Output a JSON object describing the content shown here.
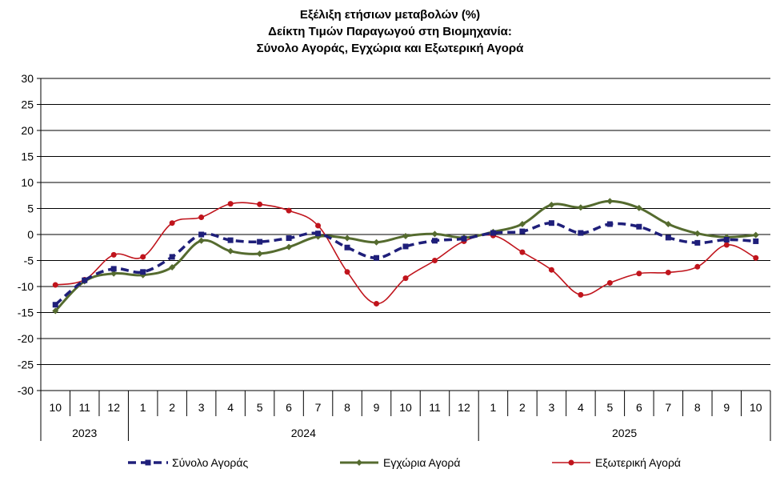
{
  "chart_data": {
    "type": "line",
    "title_lines": [
      "Εξέλιξη ετήσιων μεταβολών (%)",
      "Δείκτη Τιμών Παραγωγού στη Βιομηχανία:",
      "Σύνολο Αγοράς, Εγχώρια και Εξωτερική Αγορά"
    ],
    "xlabel": "",
    "ylabel": "",
    "ylim": [
      -30,
      30
    ],
    "y_ticks": [
      30,
      25,
      20,
      15,
      10,
      5,
      0,
      -5,
      -10,
      -15,
      -20,
      -25,
      -30
    ],
    "categories": [
      "10",
      "11",
      "12",
      "1",
      "2",
      "3",
      "4",
      "5",
      "6",
      "7",
      "8",
      "9",
      "10",
      "11",
      "12",
      "1",
      "2",
      "3",
      "4",
      "5",
      "6",
      "7",
      "8",
      "9",
      "10"
    ],
    "year_groups": [
      {
        "label": "2023",
        "count": 3
      },
      {
        "label": "2024",
        "count": 12
      },
      {
        "label": "2025",
        "count": 10
      }
    ],
    "grid": true,
    "legend_position": "bottom",
    "series": [
      {
        "name": "Σύνολο Αγοράς",
        "color": "#1f1f7a",
        "marker": "square",
        "dash": true,
        "values": [
          -13.5,
          -8.8,
          -6.6,
          -7.2,
          -4.3,
          0.0,
          -1.1,
          -1.4,
          -0.7,
          0.2,
          -2.5,
          -4.5,
          -2.3,
          -1.2,
          -0.8,
          0.3,
          0.6,
          2.2,
          0.3,
          2.0,
          1.5,
          -0.6,
          -1.6,
          -1.0,
          -1.3
        ]
      },
      {
        "name": "Εγχώρια Αγορά",
        "color": "#556b2f",
        "marker": "diamond",
        "dash": false,
        "values": [
          -14.7,
          -9.0,
          -7.5,
          -7.8,
          -6.3,
          -1.2,
          -3.2,
          -3.7,
          -2.4,
          -0.4,
          -0.7,
          -1.5,
          -0.3,
          0.1,
          -0.6,
          0.5,
          2.0,
          5.7,
          5.2,
          6.4,
          5.1,
          2.0,
          0.2,
          -0.5,
          -0.1
        ]
      },
      {
        "name": "Εξωτερική Αγορά",
        "color": "#c0141c",
        "marker": "circle",
        "dash": false,
        "values": [
          -9.7,
          -8.7,
          -3.9,
          -4.3,
          2.2,
          3.3,
          5.9,
          5.8,
          4.6,
          1.7,
          -7.2,
          -13.3,
          -8.4,
          -5.0,
          -1.3,
          -0.2,
          -3.4,
          -6.8,
          -11.6,
          -9.3,
          -7.5,
          -7.3,
          -6.2,
          -2.0,
          -4.5
        ]
      }
    ]
  }
}
